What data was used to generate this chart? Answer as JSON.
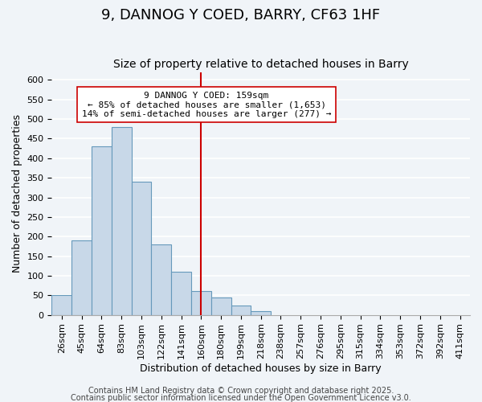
{
  "title": "9, DANNOG Y COED, BARRY, CF63 1HF",
  "subtitle": "Size of property relative to detached houses in Barry",
  "xlabel": "Distribution of detached houses by size in Barry",
  "ylabel": "Number of detached properties",
  "bin_labels": [
    "26sqm",
    "45sqm",
    "64sqm",
    "83sqm",
    "103sqm",
    "122sqm",
    "141sqm",
    "160sqm",
    "180sqm",
    "199sqm",
    "218sqm",
    "238sqm",
    "257sqm",
    "276sqm",
    "295sqm",
    "315sqm",
    "334sqm",
    "353sqm",
    "372sqm",
    "392sqm",
    "411sqm"
  ],
  "bar_values": [
    50,
    190,
    430,
    480,
    340,
    180,
    110,
    60,
    45,
    25,
    10,
    0,
    0,
    0,
    0,
    0,
    0,
    0,
    0,
    0,
    0
  ],
  "bar_color": "#c8d8e8",
  "bar_edge_color": "#6699bb",
  "reference_line_x": 7,
  "reference_line_color": "#cc0000",
  "ylim": [
    0,
    620
  ],
  "yticks": [
    0,
    50,
    100,
    150,
    200,
    250,
    300,
    350,
    400,
    450,
    500,
    550,
    600
  ],
  "annotation_title": "9 DANNOG Y COED: 159sqm",
  "annotation_line1": "← 85% of detached houses are smaller (1,653)",
  "annotation_line2": "14% of semi-detached houses are larger (277) →",
  "footer1": "Contains HM Land Registry data © Crown copyright and database right 2025.",
  "footer2": "Contains public sector information licensed under the Open Government Licence v3.0.",
  "background_color": "#f0f4f8",
  "grid_color": "#ffffff",
  "title_fontsize": 13,
  "subtitle_fontsize": 10,
  "axis_label_fontsize": 9,
  "tick_fontsize": 8,
  "annotation_fontsize": 8,
  "footer_fontsize": 7
}
